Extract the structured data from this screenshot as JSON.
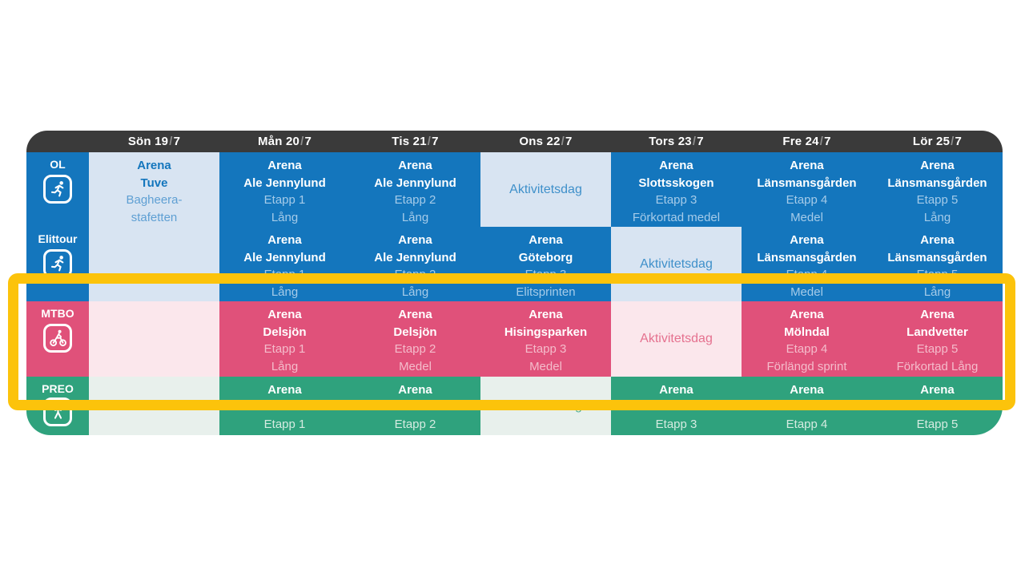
{
  "colors": {
    "header_dark": "#3a3a3a",
    "blue": "#1476bd",
    "blue_light": "#d8e4f2",
    "pink": "#e0517a",
    "pink_light": "#fbe7ec",
    "green": "#2fa27d",
    "green_light": "#e8f0ec",
    "highlight": "#fcc30b"
  },
  "header": {
    "slash": "/",
    "days": [
      {
        "pre": "Sön 19",
        "post": "7"
      },
      {
        "pre": "Mån 20",
        "post": "7"
      },
      {
        "pre": "Tis 21",
        "post": "7"
      },
      {
        "pre": "Ons 22",
        "post": "7"
      },
      {
        "pre": "Tors 23",
        "post": "7"
      },
      {
        "pre": "Fre 24",
        "post": "7"
      },
      {
        "pre": "Lör 25",
        "post": "7"
      }
    ]
  },
  "grid": {
    "ol": {
      "label": "OL",
      "icon": "runner-icon",
      "cells": [
        {
          "day": "Sön 19/7",
          "variant": "light",
          "lines": [
            {
              "t": "Arena",
              "b": true
            },
            {
              "t": "Tuve",
              "b": true
            },
            {
              "t": "Bagheera-",
              "b": false
            },
            {
              "t": "stafetten",
              "b": false
            }
          ]
        },
        {
          "day": "Mån 20/7",
          "variant": "dark",
          "lines": [
            {
              "t": "Arena",
              "b": true
            },
            {
              "t": "Ale Jennylund",
              "b": true
            },
            {
              "t": "Etapp 1",
              "b": false
            },
            {
              "t": "Lång",
              "b": false
            }
          ]
        },
        {
          "day": "Tis 21/7",
          "variant": "dark",
          "lines": [
            {
              "t": "Arena",
              "b": true
            },
            {
              "t": "Ale Jennylund",
              "b": true
            },
            {
              "t": "Etapp 2",
              "b": false
            },
            {
              "t": "Lång",
              "b": false
            }
          ]
        },
        {
          "day": "Ons 22/7",
          "variant": "light",
          "lines": [
            {
              "t": "Aktivitetsdag",
              "b": false
            }
          ]
        },
        {
          "day": "Tors 23/7",
          "variant": "dark",
          "lines": [
            {
              "t": "Arena",
              "b": true
            },
            {
              "t": "Slottsskogen",
              "b": true
            },
            {
              "t": "Etapp 3",
              "b": false
            },
            {
              "t": "Förkortad medel",
              "b": false
            }
          ]
        },
        {
          "day": "Fre 24/7",
          "variant": "dark",
          "lines": [
            {
              "t": "Arena",
              "b": true
            },
            {
              "t": "Länsmansgården",
              "b": true
            },
            {
              "t": "Etapp 4",
              "b": false
            },
            {
              "t": "Medel",
              "b": false
            }
          ]
        },
        {
          "day": "Lör 25/7",
          "variant": "dark",
          "lines": [
            {
              "t": "Arena",
              "b": true
            },
            {
              "t": "Länsmansgården",
              "b": true
            },
            {
              "t": "Etapp 5",
              "b": false
            },
            {
              "t": "Lång",
              "b": false
            }
          ]
        }
      ]
    },
    "elittour": {
      "label": "Elittour",
      "icon": "runner-icon",
      "cells": [
        {
          "day": "Mån 20/7",
          "variant": "dark",
          "lines": [
            {
              "t": "Arena",
              "b": true
            },
            {
              "t": "Ale Jennylund",
              "b": true
            },
            {
              "t": "Etapp 1",
              "b": false
            },
            {
              "t": "Lång",
              "b": false
            }
          ]
        },
        {
          "day": "Tis 21/7",
          "variant": "dark",
          "lines": [
            {
              "t": "Arena",
              "b": true
            },
            {
              "t": "Ale Jennylund",
              "b": true
            },
            {
              "t": "Etapp 2",
              "b": false
            },
            {
              "t": "Lång",
              "b": false
            }
          ]
        },
        {
          "day": "Ons 22/7",
          "variant": "dark",
          "lines": [
            {
              "t": "Arena",
              "b": true
            },
            {
              "t": "Göteborg",
              "b": true
            },
            {
              "t": "Etapp 3",
              "b": false
            },
            {
              "t": "Elitsprinten",
              "b": false
            }
          ]
        },
        {
          "day": "Tors 23/7",
          "variant": "light",
          "lines": [
            {
              "t": "Aktivitetsdag",
              "b": false
            }
          ]
        },
        {
          "day": "Fre 24/7",
          "variant": "dark",
          "lines": [
            {
              "t": "Arena",
              "b": true
            },
            {
              "t": "Länsmansgården",
              "b": true
            },
            {
              "t": "Etapp 4",
              "b": false
            },
            {
              "t": "Medel",
              "b": false
            }
          ]
        },
        {
          "day": "Lör 25/7",
          "variant": "dark",
          "lines": [
            {
              "t": "Arena",
              "b": true
            },
            {
              "t": "Länsmansgården",
              "b": true
            },
            {
              "t": "Etapp 5",
              "b": false
            },
            {
              "t": "Lång",
              "b": false
            }
          ]
        }
      ]
    },
    "mtbo": {
      "label": "MTBO",
      "icon": "cyclist-icon",
      "cells": [
        {
          "day": "Sön 19/7",
          "variant": "light",
          "lines": []
        },
        {
          "day": "Mån 20/7",
          "variant": "dark",
          "lines": [
            {
              "t": "Arena",
              "b": true
            },
            {
              "t": "Delsjön",
              "b": true
            },
            {
              "t": "Etapp 1",
              "b": false
            },
            {
              "t": "Lång",
              "b": false
            }
          ]
        },
        {
          "day": "Tis 21/7",
          "variant": "dark",
          "lines": [
            {
              "t": "Arena",
              "b": true
            },
            {
              "t": "Delsjön",
              "b": true
            },
            {
              "t": "Etapp 2",
              "b": false
            },
            {
              "t": "Medel",
              "b": false
            }
          ]
        },
        {
          "day": "Ons 22/7",
          "variant": "dark",
          "lines": [
            {
              "t": "Arena",
              "b": true
            },
            {
              "t": "Hisingsparken",
              "b": true
            },
            {
              "t": "Etapp 3",
              "b": false
            },
            {
              "t": "Medel",
              "b": false
            }
          ]
        },
        {
          "day": "Tors 23/7",
          "variant": "light",
          "lines": [
            {
              "t": "Aktivitetsdag",
              "b": false
            }
          ]
        },
        {
          "day": "Fre 24/7",
          "variant": "dark",
          "lines": [
            {
              "t": "Arena",
              "b": true
            },
            {
              "t": "Mölndal",
              "b": true
            },
            {
              "t": "Etapp 4",
              "b": false
            },
            {
              "t": "Förlängd sprint",
              "b": false
            }
          ]
        },
        {
          "day": "Lör 25/7",
          "variant": "dark",
          "lines": [
            {
              "t": "Arena",
              "b": true
            },
            {
              "t": "Landvetter",
              "b": true
            },
            {
              "t": "Etapp 5",
              "b": false
            },
            {
              "t": "Förkortad Lång",
              "b": false
            }
          ]
        }
      ]
    },
    "preo": {
      "label": "PREO",
      "icon": "person-icon",
      "cells": [
        {
          "day": "Sön 19/7",
          "variant": "light",
          "lines": []
        },
        {
          "day": "Mån 20/7",
          "variant": "dark",
          "lines": [
            {
              "t": "Arena",
              "b": true
            },
            {
              "t": "",
              "b": true
            },
            {
              "t": "Etapp 1",
              "b": false
            }
          ]
        },
        {
          "day": "Tis 21/7",
          "variant": "dark",
          "lines": [
            {
              "t": "Arena",
              "b": true
            },
            {
              "t": "",
              "b": true
            },
            {
              "t": "Etapp 2",
              "b": false
            }
          ]
        },
        {
          "day": "Ons 22/7",
          "variant": "light",
          "lines": [
            {
              "t": "Aktivitetsdag",
              "b": false
            }
          ]
        },
        {
          "day": "Tors 23/7",
          "variant": "dark",
          "lines": [
            {
              "t": "Arena",
              "b": true
            },
            {
              "t": "",
              "b": true
            },
            {
              "t": "Etapp 3",
              "b": false
            }
          ]
        },
        {
          "day": "Fre 24/7",
          "variant": "dark",
          "lines": [
            {
              "t": "Arena",
              "b": true
            },
            {
              "t": "",
              "b": true
            },
            {
              "t": "Etapp 4",
              "b": false
            }
          ]
        },
        {
          "day": "Lör 25/7",
          "variant": "dark",
          "lines": [
            {
              "t": "Arena",
              "b": true
            },
            {
              "t": "",
              "b": true
            },
            {
              "t": "Etapp 5",
              "b": false
            }
          ]
        }
      ]
    }
  }
}
